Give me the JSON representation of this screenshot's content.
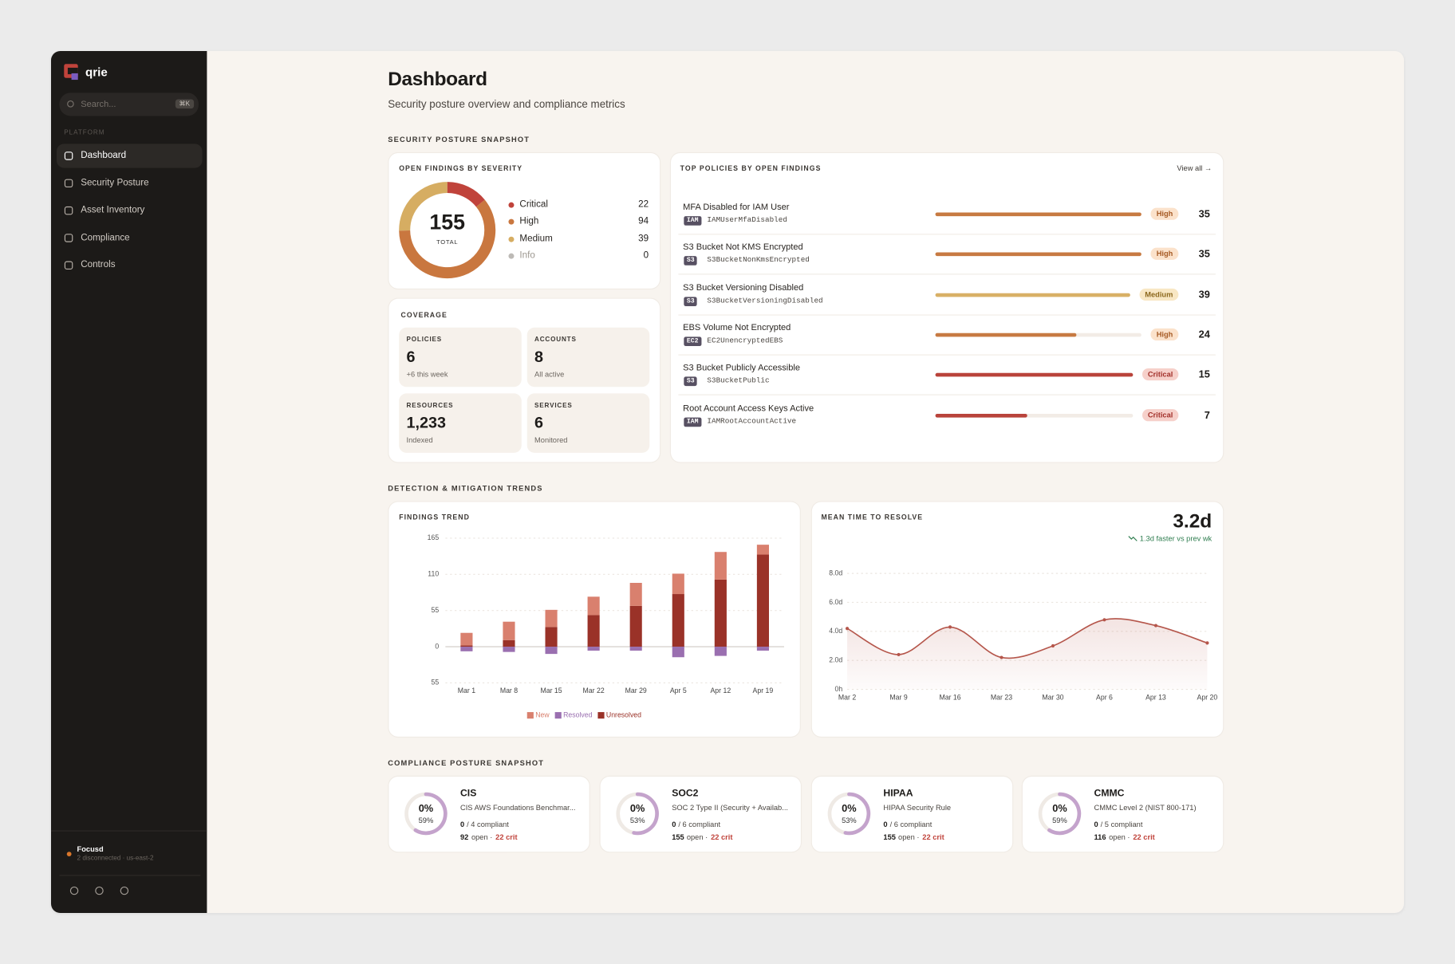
{
  "sidebar": {
    "brand": "qrie",
    "search_placeholder": "Search...",
    "shortcut": "⌘K",
    "section": "PLATFORM",
    "nav": [
      "Dashboard",
      "Security Posture",
      "Asset Inventory",
      "Compliance",
      "Controls"
    ],
    "active_nav": 0,
    "workspace": "Focusd",
    "workspace_status": "2 disconnected · us-east-2"
  },
  "header": {
    "title": "Dashboard",
    "subtitle": "Security posture overview and compliance metrics"
  },
  "sections": [
    "SECURITY POSTURE SNAPSHOT",
    "DETECTION & MITIGATION TRENDS",
    "COMPLIANCE POSTURE SNAPSHOT"
  ],
  "severity": {
    "title": "OPEN FINDINGS BY SEVERITY",
    "type": "donut",
    "total": 155,
    "total_label": "TOTAL",
    "categories": [
      "Critical",
      "High",
      "Medium",
      "Info"
    ],
    "values": [
      22,
      94,
      39,
      0
    ],
    "colors": [
      "#c0433b",
      "#c9773f",
      "#d6ad62",
      "#bdbab6"
    ]
  },
  "coverage": {
    "title": "COVERAGE",
    "tiles": [
      {
        "label": "POLICIES",
        "value": "6",
        "note": "+6 this week"
      },
      {
        "label": "ACCOUNTS",
        "value": "8",
        "note": "All active"
      },
      {
        "label": "RESOURCES",
        "value": "1,233",
        "note": "Indexed"
      },
      {
        "label": "SERVICES",
        "value": "6",
        "note": "Monitored"
      }
    ]
  },
  "policies": {
    "title": "TOP POLICIES BY OPEN FINDINGS",
    "link": "View all →",
    "severity_styles": {
      "High": {
        "bar": "#c77a42",
        "badge": "#fbe2cb",
        "text": "#a65a24"
      },
      "Medium": {
        "bar": "#d8b066",
        "badge": "#f8e7c4",
        "text": "#8c681d"
      },
      "Critical": {
        "bar": "#b9433b",
        "badge": "#f6d0ca",
        "text": "#a2302a"
      }
    },
    "rows": [
      {
        "name": "MFA Disabled for IAM User",
        "service": "IAM",
        "id": "IAMUserMfaDisabled",
        "severity": "High",
        "count": 35
      },
      {
        "name": "S3 Bucket Not KMS Encrypted",
        "service": "S3",
        "id": "S3BucketNonKmsEncrypted",
        "severity": "High",
        "count": 35
      },
      {
        "name": "S3 Bucket Versioning Disabled",
        "service": "S3",
        "id": "S3BucketVersioningDisabled",
        "severity": "Medium",
        "count": 39
      },
      {
        "name": "EBS Volume Not Encrypted",
        "service": "EC2",
        "id": "EC2UnencryptedEBS",
        "severity": "High",
        "count": 24
      },
      {
        "name": "S3 Bucket Publicly Accessible",
        "service": "S3",
        "id": "S3BucketPublic",
        "severity": "Critical",
        "count": 15
      },
      {
        "name": "Root Account Access Keys Active",
        "service": "IAM",
        "id": "IAMRootAccountActive",
        "severity": "Critical",
        "count": 7
      }
    ]
  },
  "chart_data": [
    {
      "title": "FINDINGS TREND",
      "type": "bar",
      "stacked": true,
      "categories": [
        "Mar 1",
        "Mar 8",
        "Mar 15",
        "Mar 22",
        "Mar 29",
        "Apr 5",
        "Apr 12",
        "Apr 19"
      ],
      "series": [
        {
          "name": "New",
          "color": "#d9806e",
          "values": [
            19,
            28,
            26,
            28,
            35,
            31,
            42,
            15
          ]
        },
        {
          "name": "Resolved",
          "color": "#9a6fb0",
          "values": [
            -7,
            -8,
            -11,
            -6,
            -6,
            -16,
            -14,
            -6
          ]
        },
        {
          "name": "Unresolved",
          "color": "#9a3228",
          "values": [
            2,
            10,
            30,
            48,
            62,
            80,
            102,
            140
          ]
        }
      ],
      "ylim": [
        -55,
        165
      ],
      "yticks": [
        {
          "value": -55,
          "label": "55"
        },
        0,
        55,
        110,
        165
      ],
      "grid": true
    },
    {
      "title": "MEAN TIME TO RESOLVE",
      "headline": "3.2d",
      "delta": "1.3d faster vs prev wk",
      "type": "line",
      "categories": [
        "Mar 2",
        "Mar 9",
        "Mar 16",
        "Mar 23",
        "Mar 30",
        "Apr 6",
        "Apr 13",
        "Apr 20"
      ],
      "values": [
        4.2,
        2.4,
        4.3,
        2.2,
        3.0,
        4.8,
        4.4,
        3.2
      ],
      "color": "#b5564b",
      "ylim": [
        0,
        8
      ],
      "yticks": [
        {
          "value": 8,
          "label": "8.0d"
        },
        {
          "value": 6,
          "label": "6.0d"
        },
        {
          "value": 4,
          "label": "4.0d"
        },
        {
          "value": 2,
          "label": "2.0d"
        },
        {
          "value": 0,
          "label": "0h"
        }
      ],
      "grid": true
    }
  ],
  "compliance": {
    "cards": [
      {
        "name": "CIS",
        "description": "CIS AWS Foundations Benchmar...",
        "compliant_pct": "0%",
        "score": 59,
        "score_label": "59%",
        "compliant": "0",
        "compliant_of": "/ 4 compliant",
        "open": "92",
        "open_text": "open ·",
        "critical": "22 crit"
      },
      {
        "name": "SOC2",
        "description": "SOC 2 Type II (Security + Availab...",
        "compliant_pct": "0%",
        "score": 53,
        "score_label": "53%",
        "compliant": "0",
        "compliant_of": "/ 6 compliant",
        "open": "155",
        "open_text": "open ·",
        "critical": "22 crit"
      },
      {
        "name": "HIPAA",
        "description": "HIPAA Security Rule",
        "compliant_pct": "0%",
        "score": 53,
        "score_label": "53%",
        "compliant": "0",
        "compliant_of": "/ 6 compliant",
        "open": "155",
        "open_text": "open ·",
        "critical": "22 crit"
      },
      {
        "name": "CMMC",
        "description": "CMMC Level 2 (NIST 800-171)",
        "compliant_pct": "0%",
        "score": 59,
        "score_label": "59%",
        "compliant": "0",
        "compliant_of": "/ 5 compliant",
        "open": "116",
        "open_text": "open ·",
        "critical": "22 crit"
      }
    ]
  }
}
